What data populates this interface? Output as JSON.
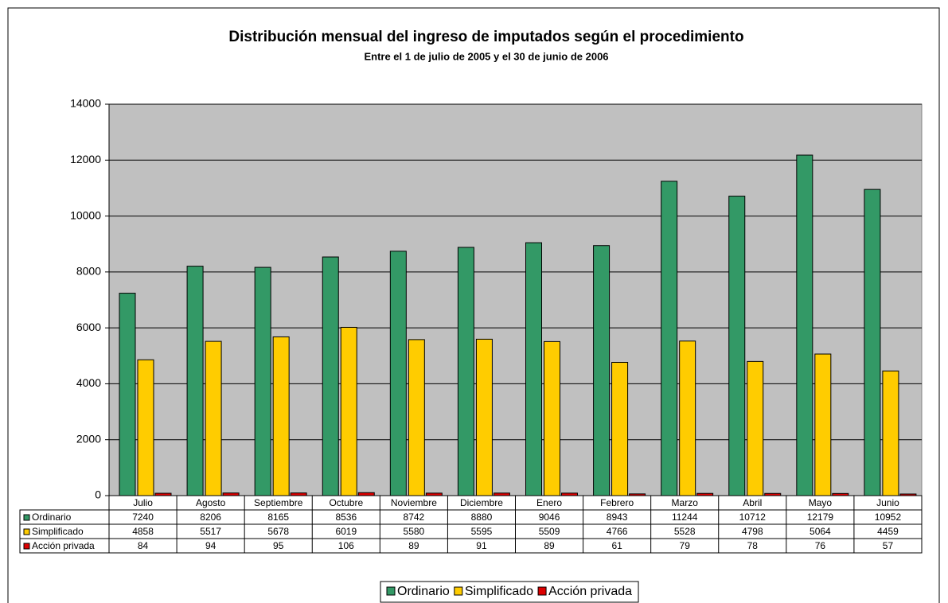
{
  "chart_data": {
    "type": "bar",
    "title": "Distribución mensual del ingreso de imputados según el procedimiento",
    "subtitle": "Entre el 1 de julio de 2005 y el 30 de junio de 2006",
    "categories": [
      "Julio",
      "Agosto",
      "Septiembre",
      "Octubre",
      "Noviembre",
      "Diciembre",
      "Enero",
      "Febrero",
      "Marzo",
      "Abril",
      "Mayo",
      "Junio"
    ],
    "series": [
      {
        "name": "Ordinario",
        "color": "#339966",
        "values": [
          7240,
          8206,
          8165,
          8536,
          8742,
          8880,
          9046,
          8943,
          11244,
          10712,
          12179,
          10952
        ]
      },
      {
        "name": "Simplificado",
        "color": "#ffcc00",
        "values": [
          4858,
          5517,
          5678,
          6019,
          5580,
          5595,
          5509,
          4766,
          5528,
          4798,
          5064,
          4459
        ]
      },
      {
        "name": "Acción privada",
        "color": "#dd0000",
        "values": [
          84,
          94,
          95,
          106,
          89,
          91,
          89,
          61,
          79,
          78,
          76,
          57
        ]
      }
    ],
    "ylim": [
      0,
      14000
    ],
    "yticks": [
      0,
      2000,
      4000,
      6000,
      8000,
      10000,
      12000,
      14000
    ],
    "grid": true,
    "legend": "bottom"
  }
}
